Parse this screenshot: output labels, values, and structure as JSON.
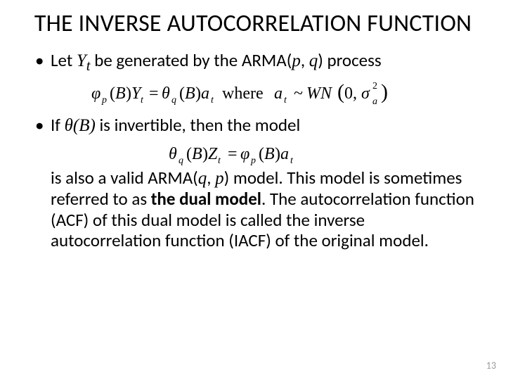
{
  "title": "THE INVERSE AUTOCORRELATION FUNCTION",
  "bullet1": {
    "pre": "Let ",
    "var1": "Y",
    "sub1": "t",
    "mid": " be generated by the ARMA(",
    "p": "p",
    "comma": ", ",
    "q": "q",
    "post": ") process"
  },
  "equation1": {
    "text": "φp(B) Yt = θq(B) at  where at ~ WN(0, σa²)"
  },
  "bullet2": {
    "pre": "If ",
    "theta": "θ(B)",
    "post": " is invertible, then the model"
  },
  "equation2": {
    "text": "θq(B) Zt = φp(B) at"
  },
  "body": {
    "line1_pre": " is also a valid ARMA(",
    "q": "q",
    "comma": ", ",
    "p": "p",
    "line1_post": ") model. This model is sometimes referred to as ",
    "bold": "the dual model",
    "line_rest": ". The autocorrelation function (ACF) of this dual model is called the inverse autocorrelation function (IACF) of the original model."
  },
  "pagenum": "13",
  "colors": {
    "bg": "#ffffff",
    "text": "#000000",
    "pagenum": "#9a9a9a"
  },
  "fonts": {
    "title_size_pt": 34,
    "body_size_pt": 25,
    "pagenum_size_pt": 14,
    "body_family": "Calibri",
    "math_family": "Times New Roman"
  }
}
